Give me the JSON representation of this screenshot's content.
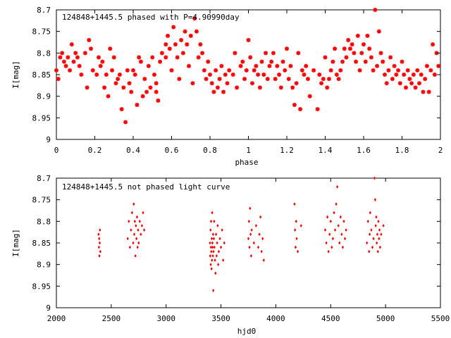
{
  "charts": [
    {
      "id": "top",
      "title": "124848+1445.5 phased with P=4.90990day",
      "xlabel": "phase",
      "ylabel": "I[mag]",
      "xlim": [
        0,
        2
      ],
      "ylim": [
        8.7,
        9
      ],
      "y_inverted": true,
      "x_ticks": [
        "0",
        "0.2",
        "0.4",
        "0.6",
        "0.8",
        "1",
        "1.2",
        "1.4",
        "1.6",
        "1.8",
        "2"
      ],
      "y_ticks": [
        "8.7",
        "8.75",
        "8.8",
        "8.85",
        "8.9",
        "8.95",
        "9"
      ],
      "marker": "star",
      "color": "#ff0000"
    },
    {
      "id": "bottom",
      "title": "124848+1445.5 not phased light curve",
      "xlabel": "hjd0",
      "ylabel": "I[mag]",
      "xlim": [
        2000,
        5500
      ],
      "ylim": [
        8.7,
        9
      ],
      "y_inverted": true,
      "x_ticks": [
        "2000",
        "2500",
        "3000",
        "3500",
        "4000",
        "4500",
        "5000",
        "5500"
      ],
      "y_ticks": [
        "8.7",
        "8.75",
        "8.8",
        "8.85",
        "8.9",
        "8.95",
        "9"
      ],
      "marker": "diamond",
      "color": "#ff0000"
    }
  ],
  "chart_data": [
    {
      "type": "scatter",
      "title": "124848+1445.5 phased with P=4.90990day",
      "xlabel": "phase",
      "ylabel": "I[mag]",
      "xlim": [
        0,
        2
      ],
      "ylim": [
        8.7,
        9
      ],
      "points": [
        [
          0.0,
          8.84
        ],
        [
          0.01,
          8.86
        ],
        [
          0.02,
          8.81
        ],
        [
          0.03,
          8.8
        ],
        [
          0.04,
          8.82
        ],
        [
          0.05,
          8.83
        ],
        [
          0.06,
          8.81
        ],
        [
          0.07,
          8.84
        ],
        [
          0.08,
          8.78
        ],
        [
          0.09,
          8.82
        ],
        [
          0.1,
          8.8
        ],
        [
          0.11,
          8.81
        ],
        [
          0.12,
          8.83
        ],
        [
          0.13,
          8.85
        ],
        [
          0.15,
          8.8
        ],
        [
          0.16,
          8.88
        ],
        [
          0.17,
          8.77
        ],
        [
          0.18,
          8.79
        ],
        [
          0.19,
          8.84
        ],
        [
          0.21,
          8.85
        ],
        [
          0.22,
          8.81
        ],
        [
          0.23,
          8.83
        ],
        [
          0.24,
          8.82
        ],
        [
          0.25,
          8.88
        ],
        [
          0.26,
          8.85
        ],
        [
          0.27,
          8.9
        ],
        [
          0.28,
          8.79
        ],
        [
          0.29,
          8.84
        ],
        [
          0.3,
          8.81
        ],
        [
          0.31,
          8.87
        ],
        [
          0.32,
          8.86
        ],
        [
          0.33,
          8.85
        ],
        [
          0.34,
          8.93
        ],
        [
          0.35,
          8.88
        ],
        [
          0.36,
          8.96
        ],
        [
          0.37,
          8.84
        ],
        [
          0.38,
          8.87
        ],
        [
          0.39,
          8.89
        ],
        [
          0.4,
          8.84
        ],
        [
          0.41,
          8.85
        ],
        [
          0.42,
          8.92
        ],
        [
          0.43,
          8.81
        ],
        [
          0.44,
          8.82
        ],
        [
          0.45,
          8.9
        ],
        [
          0.46,
          8.86
        ],
        [
          0.47,
          8.89
        ],
        [
          0.48,
          8.83
        ],
        [
          0.49,
          8.88
        ],
        [
          0.5,
          8.81
        ],
        [
          0.51,
          8.85
        ],
        [
          0.52,
          8.87
        ],
        [
          0.52,
          8.89
        ],
        [
          0.53,
          8.91
        ],
        [
          0.54,
          8.82
        ],
        [
          0.55,
          8.8
        ],
        [
          0.57,
          8.78
        ],
        [
          0.57,
          8.81
        ],
        [
          0.58,
          8.76
        ],
        [
          0.59,
          8.79
        ],
        [
          0.6,
          8.84
        ],
        [
          0.61,
          8.74
        ],
        [
          0.62,
          8.78
        ],
        [
          0.63,
          8.81
        ],
        [
          0.64,
          8.86
        ],
        [
          0.65,
          8.77
        ],
        [
          0.66,
          8.8
        ],
        [
          0.67,
          8.75
        ],
        [
          0.68,
          8.78
        ],
        [
          0.69,
          8.83
        ],
        [
          0.7,
          8.76
        ],
        [
          0.71,
          8.87
        ],
        [
          0.72,
          8.72
        ],
        [
          0.73,
          8.75
        ],
        [
          0.74,
          8.81
        ],
        [
          0.75,
          8.78
        ],
        [
          0.76,
          8.8
        ],
        [
          0.77,
          8.84
        ],
        [
          0.78,
          8.86
        ],
        [
          0.79,
          8.82
        ],
        [
          0.8,
          8.85
        ],
        [
          0.81,
          8.87
        ],
        [
          0.82,
          8.89
        ],
        [
          0.83,
          8.84
        ],
        [
          0.84,
          8.88
        ],
        [
          0.85,
          8.86
        ],
        [
          0.86,
          8.83
        ],
        [
          0.87,
          8.89
        ],
        [
          0.88,
          8.85
        ],
        [
          0.89,
          8.87
        ],
        [
          0.9,
          8.84
        ],
        [
          0.92,
          8.85
        ],
        [
          0.93,
          8.8
        ],
        [
          0.94,
          8.88
        ],
        [
          0.96,
          8.83
        ],
        [
          0.97,
          8.82
        ],
        [
          0.98,
          8.86
        ],
        [
          0.99,
          8.84
        ],
        [
          1.0,
          8.77
        ],
        [
          1.01,
          8.81
        ],
        [
          1.02,
          8.87
        ],
        [
          1.03,
          8.84
        ],
        [
          1.04,
          8.83
        ],
        [
          1.05,
          8.85
        ],
        [
          1.06,
          8.88
        ],
        [
          1.07,
          8.82
        ],
        [
          1.08,
          8.85
        ],
        [
          1.09,
          8.8
        ],
        [
          1.1,
          8.86
        ],
        [
          1.11,
          8.83
        ],
        [
          1.12,
          8.82
        ],
        [
          1.13,
          8.8
        ],
        [
          1.14,
          8.86
        ],
        [
          1.15,
          8.83
        ],
        [
          1.16,
          8.85
        ],
        [
          1.17,
          8.88
        ],
        [
          1.18,
          8.82
        ],
        [
          1.19,
          8.84
        ],
        [
          1.2,
          8.79
        ],
        [
          1.21,
          8.86
        ],
        [
          1.22,
          8.83
        ],
        [
          1.23,
          8.88
        ],
        [
          1.24,
          8.92
        ],
        [
          1.25,
          8.87
        ],
        [
          1.26,
          8.8
        ],
        [
          1.27,
          8.93
        ],
        [
          1.28,
          8.84
        ],
        [
          1.29,
          8.85
        ],
        [
          1.3,
          8.83
        ],
        [
          1.31,
          8.86
        ],
        [
          1.32,
          8.9
        ],
        [
          1.34,
          8.84
        ],
        [
          1.36,
          8.93
        ],
        [
          1.37,
          8.85
        ],
        [
          1.38,
          8.87
        ],
        [
          1.39,
          8.86
        ],
        [
          1.4,
          8.81
        ],
        [
          1.41,
          8.88
        ],
        [
          1.42,
          8.86
        ],
        [
          1.43,
          8.84
        ],
        [
          1.44,
          8.82
        ],
        [
          1.45,
          8.79
        ],
        [
          1.46,
          8.85
        ],
        [
          1.47,
          8.86
        ],
        [
          1.48,
          8.84
        ],
        [
          1.49,
          8.82
        ],
        [
          1.5,
          8.79
        ],
        [
          1.51,
          8.81
        ],
        [
          1.52,
          8.77
        ],
        [
          1.53,
          8.79
        ],
        [
          1.54,
          8.78
        ],
        [
          1.55,
          8.8
        ],
        [
          1.56,
          8.82
        ],
        [
          1.57,
          8.76
        ],
        [
          1.58,
          8.84
        ],
        [
          1.59,
          8.8
        ],
        [
          1.6,
          8.78
        ],
        [
          1.61,
          8.82
        ],
        [
          1.62,
          8.76
        ],
        [
          1.63,
          8.79
        ],
        [
          1.64,
          8.81
        ],
        [
          1.65,
          8.84
        ],
        [
          1.66,
          8.7
        ],
        [
          1.67,
          8.83
        ],
        [
          1.68,
          8.75
        ],
        [
          1.69,
          8.8
        ],
        [
          1.7,
          8.82
        ],
        [
          1.71,
          8.85
        ],
        [
          1.72,
          8.87
        ],
        [
          1.73,
          8.84
        ],
        [
          1.74,
          8.81
        ],
        [
          1.75,
          8.86
        ],
        [
          1.76,
          8.83
        ],
        [
          1.77,
          8.85
        ],
        [
          1.78,
          8.84
        ],
        [
          1.79,
          8.87
        ],
        [
          1.8,
          8.82
        ],
        [
          1.81,
          8.85
        ],
        [
          1.82,
          8.88
        ],
        [
          1.83,
          8.84
        ],
        [
          1.84,
          8.86
        ],
        [
          1.85,
          8.87
        ],
        [
          1.86,
          8.85
        ],
        [
          1.87,
          8.88
        ],
        [
          1.88,
          8.84
        ],
        [
          1.89,
          8.87
        ],
        [
          1.9,
          8.85
        ],
        [
          1.91,
          8.89
        ],
        [
          1.92,
          8.86
        ],
        [
          1.93,
          8.83
        ],
        [
          1.94,
          8.89
        ],
        [
          1.95,
          8.84
        ],
        [
          1.96,
          8.78
        ],
        [
          1.97,
          8.85
        ],
        [
          1.98,
          8.8
        ],
        [
          1.99,
          8.83
        ]
      ]
    },
    {
      "type": "scatter",
      "title": "124848+1445.5 not phased light curve",
      "xlabel": "hjd0",
      "ylabel": "I[mag]",
      "xlim": [
        2000,
        5500
      ],
      "ylim": [
        8.7,
        9
      ],
      "points": [
        [
          2385,
          8.83
        ],
        [
          2388,
          8.86
        ],
        [
          2390,
          8.84
        ],
        [
          2392,
          8.88
        ],
        [
          2395,
          8.85
        ],
        [
          2397,
          8.82
        ],
        [
          2400,
          8.87
        ],
        [
          2650,
          8.84
        ],
        [
          2660,
          8.8
        ],
        [
          2670,
          8.86
        ],
        [
          2680,
          8.82
        ],
        [
          2690,
          8.78
        ],
        [
          2700,
          8.85
        ],
        [
          2705,
          8.76
        ],
        [
          2710,
          8.83
        ],
        [
          2715,
          8.8
        ],
        [
          2720,
          8.88
        ],
        [
          2725,
          8.81
        ],
        [
          2730,
          8.84
        ],
        [
          2735,
          8.79
        ],
        [
          2740,
          8.86
        ],
        [
          2745,
          8.82
        ],
        [
          2750,
          8.85
        ],
        [
          2760,
          8.8
        ],
        [
          2770,
          8.83
        ],
        [
          2780,
          8.81
        ],
        [
          2790,
          8.78
        ],
        [
          2800,
          8.82
        ],
        [
          3400,
          8.85
        ],
        [
          3402,
          8.88
        ],
        [
          3405,
          8.82
        ],
        [
          3407,
          8.9
        ],
        [
          3409,
          8.86
        ],
        [
          3410,
          8.8
        ],
        [
          3412,
          8.87
        ],
        [
          3414,
          8.91
        ],
        [
          3416,
          8.84
        ],
        [
          3418,
          8.89
        ],
        [
          3420,
          8.78
        ],
        [
          3422,
          8.85
        ],
        [
          3424,
          8.86
        ],
        [
          3426,
          8.88
        ],
        [
          3428,
          8.83
        ],
        [
          3430,
          8.96
        ],
        [
          3432,
          8.87
        ],
        [
          3435,
          8.84
        ],
        [
          3438,
          8.8
        ],
        [
          3440,
          8.86
        ],
        [
          3445,
          8.89
        ],
        [
          3450,
          8.92
        ],
        [
          3455,
          8.83
        ],
        [
          3460,
          8.88
        ],
        [
          3465,
          8.85
        ],
        [
          3470,
          8.81
        ],
        [
          3475,
          8.9
        ],
        [
          3480,
          8.87
        ],
        [
          3490,
          8.84
        ],
        [
          3500,
          8.86
        ],
        [
          3510,
          8.82
        ],
        [
          3520,
          8.89
        ],
        [
          3530,
          8.85
        ],
        [
          3750,
          8.84
        ],
        [
          3755,
          8.8
        ],
        [
          3760,
          8.86
        ],
        [
          3765,
          8.77
        ],
        [
          3770,
          8.83
        ],
        [
          3775,
          8.88
        ],
        [
          3780,
          8.82
        ],
        [
          3800,
          8.85
        ],
        [
          3820,
          8.81
        ],
        [
          3840,
          8.86
        ],
        [
          3850,
          8.83
        ],
        [
          3860,
          8.79
        ],
        [
          3870,
          8.87
        ],
        [
          3880,
          8.84
        ],
        [
          3890,
          8.89
        ],
        [
          4170,
          8.76
        ],
        [
          4175,
          8.82
        ],
        [
          4180,
          8.86
        ],
        [
          4185,
          8.8
        ],
        [
          4190,
          8.84
        ],
        [
          4200,
          8.87
        ],
        [
          4230,
          8.81
        ],
        [
          4450,
          8.82
        ],
        [
          4460,
          8.85
        ],
        [
          4470,
          8.79
        ],
        [
          4480,
          8.87
        ],
        [
          4490,
          8.83
        ],
        [
          4500,
          8.8
        ],
        [
          4510,
          8.86
        ],
        [
          4520,
          8.84
        ],
        [
          4530,
          8.78
        ],
        [
          4540,
          8.82
        ],
        [
          4550,
          8.76
        ],
        [
          4560,
          8.72
        ],
        [
          4570,
          8.81
        ],
        [
          4580,
          8.85
        ],
        [
          4590,
          8.79
        ],
        [
          4600,
          8.83
        ],
        [
          4610,
          8.86
        ],
        [
          4620,
          8.8
        ],
        [
          4630,
          8.84
        ],
        [
          4640,
          8.82
        ],
        [
          4830,
          8.85
        ],
        [
          4840,
          8.8
        ],
        [
          4850,
          8.87
        ],
        [
          4855,
          8.83
        ],
        [
          4860,
          8.78
        ],
        [
          4870,
          8.82
        ],
        [
          4880,
          8.86
        ],
        [
          4890,
          8.84
        ],
        [
          4900,
          8.7
        ],
        [
          4905,
          8.75
        ],
        [
          4910,
          8.81
        ],
        [
          4915,
          8.79
        ],
        [
          4920,
          8.85
        ],
        [
          4925,
          8.83
        ],
        [
          4930,
          8.87
        ],
        [
          4935,
          8.8
        ],
        [
          4940,
          8.84
        ],
        [
          4945,
          8.82
        ],
        [
          4950,
          8.86
        ],
        [
          4960,
          8.83
        ],
        [
          4980,
          8.81
        ]
      ]
    }
  ]
}
